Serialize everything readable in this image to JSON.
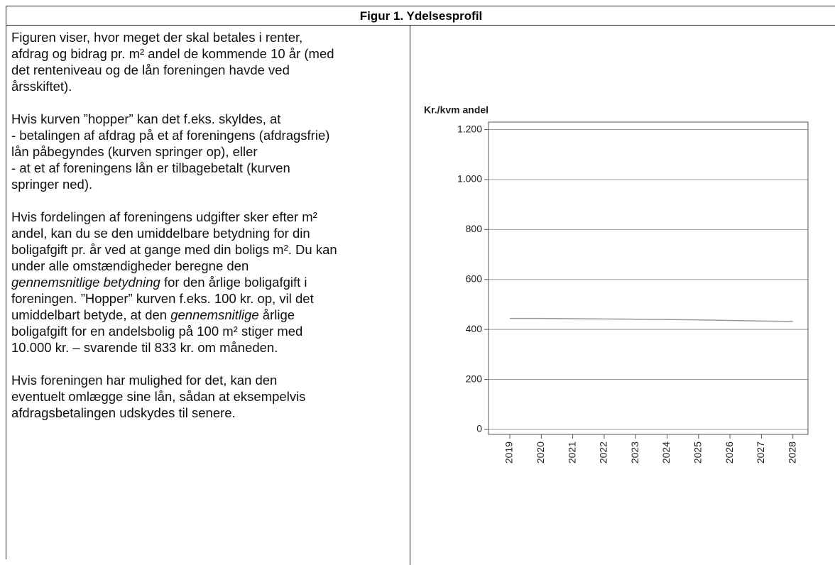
{
  "header": {
    "title": "Figur 1. Ydelsesprofil"
  },
  "text": {
    "paragraphs": [
      {
        "lines": [
          [
            "Figuren viser, hvor meget der skal betales i renter,"
          ],
          [
            "afdrag og bidrag pr. m² andel de kommende 10 år (med"
          ],
          [
            "det renteniveau og de lån foreningen havde ved"
          ],
          [
            "årsskiftet)."
          ]
        ]
      },
      {
        "lines": [
          [
            "Hvis kurven ”hopper” kan det f.eks. skyldes, at"
          ],
          [
            "- betalingen af afdrag på et af foreningens (afdragsfrie)"
          ],
          [
            "lån påbegyndes (kurven springer op), eller"
          ],
          [
            "- at et af foreningens lån er tilbagebetalt (kurven"
          ],
          [
            "springer ned)."
          ]
        ]
      },
      {
        "lines": [
          [
            "Hvis fordelingen af foreningens udgifter sker efter m²"
          ],
          [
            "andel, kan du se den umiddelbare betydning for din"
          ],
          [
            "boligafgift pr. år ved at gange med din boligs m². Du kan"
          ],
          [
            "under alle omstændigheder beregne den"
          ],
          [
            {
              "text": "gennemsnitlige betydning",
              "italic": true
            },
            " for den årlige boligafgift i"
          ],
          [
            "foreningen. ”Hopper” kurven f.eks. 100 kr. op, vil det"
          ],
          [
            "umiddelbart betyde, at den ",
            {
              "text": "gennemsnitlige",
              "italic": true
            },
            " årlige"
          ],
          [
            "boligafgift for en andelsbolig på 100 m² stiger med"
          ],
          [
            "10.000 kr. – svarende til 833 kr. om måneden."
          ]
        ]
      },
      {
        "lines": [
          [
            "Hvis foreningen har mulighed for det, kan den"
          ],
          [
            "eventuelt omlægge sine lån, sådan at eksempelvis"
          ],
          [
            "afdragsbetalingen udskydes til senere."
          ]
        ]
      }
    ]
  },
  "chart_data": {
    "type": "line",
    "y_label": "Kr./kvm andel",
    "categories": [
      "2019",
      "2020",
      "2021",
      "2022",
      "2023",
      "2024",
      "2025",
      "2026",
      "2027",
      "2028"
    ],
    "values": [
      444,
      444,
      443,
      442,
      441,
      440,
      438,
      436,
      434,
      432
    ],
    "color": "#999999",
    "ylim": [
      -20,
      1230
    ],
    "yticks": [
      0,
      200,
      400,
      600,
      800,
      {
        "value": 1000,
        "label": "1.000"
      },
      {
        "value": 1200,
        "label": "1.200"
      }
    ],
    "grid": true
  }
}
